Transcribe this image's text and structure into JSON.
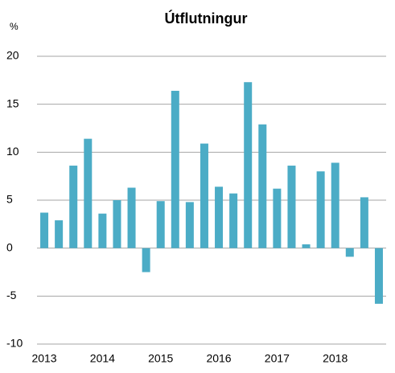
{
  "chart_data": {
    "type": "bar",
    "title": "Útflutningur",
    "y_label": "%",
    "categories": [
      "2013",
      null,
      null,
      null,
      "2014",
      null,
      null,
      null,
      "2015",
      null,
      null,
      null,
      "2016",
      null,
      null,
      null,
      "2017",
      null,
      null,
      null,
      "2018",
      null,
      null,
      null
    ],
    "values": [
      3.7,
      2.9,
      8.6,
      11.4,
      3.6,
      5.0,
      6.3,
      -2.5,
      4.9,
      16.4,
      4.8,
      10.9,
      6.4,
      5.7,
      17.3,
      12.9,
      6.2,
      8.6,
      0.4,
      8.0,
      8.9,
      -0.9,
      5.3,
      -5.8
    ],
    "color": "#4bacc6",
    "ylim": [
      -10,
      20
    ],
    "yticks": [
      -10,
      -5,
      0,
      5,
      10,
      15,
      20
    ],
    "grid": true
  }
}
